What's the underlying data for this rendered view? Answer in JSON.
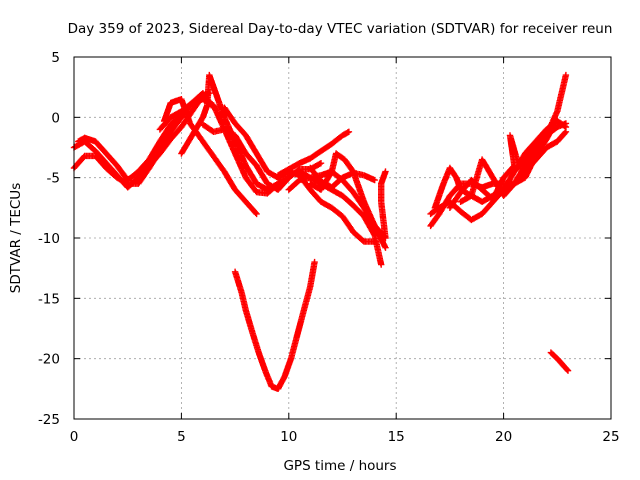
{
  "chart_data": {
    "type": "scatter",
    "title": "Day 359 of 2023, Sidereal Day-to-day VTEC variation (SDTVAR) for receiver reun",
    "xlabel": "GPS time / hours",
    "ylabel": "SDTVAR / TECUs",
    "xlim": [
      0,
      25
    ],
    "ylim": [
      -25,
      5
    ],
    "x_ticks": [
      0,
      5,
      10,
      15,
      20,
      25
    ],
    "y_ticks": [
      5,
      0,
      -5,
      -10,
      -15,
      -20,
      -25
    ],
    "grid": true,
    "legend": "none",
    "marker": "plus",
    "series_color": "#ff0000",
    "series": [
      {
        "name": "",
        "points": [
          [
            0,
            -2.5
          ],
          [
            0.5,
            -2
          ],
          [
            1,
            -2.8
          ],
          [
            1.5,
            -3.8
          ],
          [
            2,
            -4.8
          ],
          [
            2.5,
            -5.8
          ],
          [
            3,
            -5
          ],
          [
            3.5,
            -4
          ],
          [
            4,
            -3
          ],
          [
            4.5,
            -1.8
          ],
          [
            5,
            -0.8
          ],
          [
            5.5,
            0.5
          ],
          [
            6,
            1.8
          ],
          [
            6.3,
            2
          ]
        ]
      },
      {
        "name": "",
        "points": [
          [
            0,
            -4.2
          ],
          [
            0.5,
            -3.2
          ],
          [
            1,
            -3.2
          ],
          [
            1.5,
            -4.2
          ],
          [
            2,
            -5
          ],
          [
            2.5,
            -5.5
          ],
          [
            3,
            -5.5
          ],
          [
            3.5,
            -4.2
          ],
          [
            4,
            -2.8
          ],
          [
            4.5,
            -1.2
          ],
          [
            5,
            0
          ],
          [
            5.5,
            1.2
          ],
          [
            6,
            2
          ],
          [
            6.5,
            0.8
          ]
        ]
      },
      {
        "name": "",
        "points": [
          [
            0.2,
            -2
          ],
          [
            0.5,
            -1.7
          ],
          [
            1,
            -2
          ],
          [
            1.5,
            -3
          ],
          [
            2,
            -4
          ],
          [
            2.5,
            -5.2
          ],
          [
            3,
            -4.5
          ],
          [
            3.5,
            -3.5
          ],
          [
            4,
            -2
          ],
          [
            4.5,
            -0.6
          ],
          [
            5,
            0.2
          ]
        ]
      },
      {
        "name": "",
        "points": [
          [
            5,
            -3
          ],
          [
            5.5,
            -1.5
          ],
          [
            6,
            0
          ],
          [
            6.2,
            1
          ],
          [
            6.3,
            3.5
          ],
          [
            6.6,
            2
          ],
          [
            7,
            0
          ],
          [
            7.5,
            -2
          ],
          [
            8,
            -4
          ],
          [
            8.5,
            -5.5
          ],
          [
            9,
            -6
          ],
          [
            9.5,
            -5.5
          ],
          [
            10,
            -5
          ]
        ]
      },
      {
        "name": "",
        "points": [
          [
            4,
            -1
          ],
          [
            4.5,
            0
          ],
          [
            5,
            0.5
          ],
          [
            5.5,
            1.2
          ],
          [
            6,
            1.5
          ],
          [
            6.5,
            1
          ],
          [
            7,
            -1
          ],
          [
            7.5,
            -3
          ],
          [
            8,
            -5
          ],
          [
            8.5,
            -6.2
          ],
          [
            9,
            -6.3
          ],
          [
            9.5,
            -5.5
          ]
        ]
      },
      {
        "name": "",
        "points": [
          [
            4.2,
            -0.3
          ],
          [
            4.5,
            1.2
          ],
          [
            5,
            1.5
          ],
          [
            5.4,
            -0.5
          ],
          [
            5.8,
            -1.5
          ],
          [
            6.4,
            -3
          ],
          [
            7,
            -4.5
          ],
          [
            7.5,
            -6
          ],
          [
            8,
            -7
          ],
          [
            8.5,
            -8
          ]
        ]
      },
      {
        "name": "",
        "points": [
          [
            6,
            -0.6
          ],
          [
            6.5,
            -1.2
          ],
          [
            7,
            -1
          ],
          [
            7.5,
            -1.5
          ],
          [
            8,
            -3
          ],
          [
            8.5,
            -4
          ],
          [
            9,
            -5.5
          ],
          [
            9.5,
            -6
          ],
          [
            10,
            -5
          ],
          [
            10.5,
            -4.3
          ],
          [
            11,
            -4.3
          ],
          [
            11.5,
            -3.8
          ]
        ]
      },
      {
        "name": "",
        "points": [
          [
            7,
            0.8
          ],
          [
            7.5,
            -0.5
          ],
          [
            8,
            -1.5
          ],
          [
            8.5,
            -3
          ],
          [
            9,
            -4.5
          ],
          [
            9.5,
            -5
          ],
          [
            10,
            -4.5
          ],
          [
            10.5,
            -4.8
          ],
          [
            11,
            -6
          ],
          [
            11.5,
            -7
          ],
          [
            12,
            -7.5
          ],
          [
            12.5,
            -8.2
          ],
          [
            13,
            -9.5
          ],
          [
            13.5,
            -10.3
          ],
          [
            14,
            -10.3
          ]
        ]
      },
      {
        "name": "",
        "points": [
          [
            9.5,
            -4.8
          ],
          [
            10,
            -4.3
          ],
          [
            10.5,
            -3.8
          ],
          [
            11,
            -3.4
          ],
          [
            11.5,
            -2.8
          ],
          [
            12,
            -2.2
          ],
          [
            12.5,
            -1.5
          ],
          [
            12.8,
            -1.2
          ]
        ]
      },
      {
        "name": "",
        "points": [
          [
            10,
            -6
          ],
          [
            10.5,
            -5.2
          ],
          [
            11,
            -5
          ],
          [
            11.5,
            -4.8
          ],
          [
            12,
            -4.5
          ],
          [
            12.5,
            -5.2
          ],
          [
            13,
            -6.2
          ],
          [
            13.5,
            -7.5
          ],
          [
            14,
            -9
          ],
          [
            14.5,
            -10.8
          ]
        ]
      },
      {
        "name": "",
        "points": [
          [
            10.5,
            -4.5
          ],
          [
            11,
            -5
          ],
          [
            11.5,
            -5.5
          ],
          [
            12,
            -6
          ],
          [
            12.5,
            -6.5
          ],
          [
            13,
            -7.3
          ],
          [
            13.5,
            -8.2
          ],
          [
            14,
            -9.8
          ],
          [
            14.3,
            -12.2
          ]
        ]
      },
      {
        "name": "",
        "points": [
          [
            11,
            -4.2
          ],
          [
            11.5,
            -5.3
          ],
          [
            12,
            -5.8
          ],
          [
            12.5,
            -5
          ],
          [
            13,
            -4.6
          ],
          [
            13.5,
            -4.8
          ],
          [
            14,
            -5.2
          ]
        ]
      },
      {
        "name": "",
        "points": [
          [
            11,
            -5.5
          ],
          [
            11.5,
            -6
          ],
          [
            12,
            -4.5
          ],
          [
            12.2,
            -3
          ],
          [
            12.6,
            -3.5
          ],
          [
            13,
            -4.5
          ],
          [
            13.5,
            -7
          ],
          [
            14,
            -9
          ],
          [
            14.5,
            -10
          ],
          [
            14.3,
            -7
          ],
          [
            14.3,
            -5.5
          ],
          [
            14.5,
            -4.5
          ]
        ]
      },
      {
        "name": "",
        "points": [
          [
            7.5,
            -12.8
          ],
          [
            7.8,
            -14.5
          ],
          [
            8,
            -16
          ],
          [
            8.3,
            -17.8
          ],
          [
            8.6,
            -19.5
          ],
          [
            8.9,
            -21
          ],
          [
            9.2,
            -22.3
          ],
          [
            9.5,
            -22.5
          ],
          [
            9.8,
            -21.5
          ],
          [
            10.1,
            -20
          ],
          [
            10.4,
            -18
          ],
          [
            10.7,
            -16
          ],
          [
            11,
            -14
          ],
          [
            11.2,
            -12
          ]
        ]
      },
      {
        "name": "",
        "points": [
          [
            16.6,
            -9
          ],
          [
            17,
            -8
          ],
          [
            17.5,
            -6.5
          ],
          [
            18,
            -5.5
          ],
          [
            18.5,
            -5.5
          ],
          [
            19,
            -5.8
          ],
          [
            19.5,
            -5.5
          ],
          [
            20,
            -5.5
          ],
          [
            20.5,
            -5.5
          ],
          [
            21,
            -4.5
          ],
          [
            21.5,
            -3.5
          ],
          [
            22,
            -2.5
          ],
          [
            22.5,
            -2
          ],
          [
            22.9,
            -1.2
          ]
        ]
      },
      {
        "name": "",
        "points": [
          [
            16.6,
            -8
          ],
          [
            17,
            -7.5
          ],
          [
            17.5,
            -7
          ],
          [
            18,
            -7.8
          ],
          [
            18.5,
            -8.5
          ],
          [
            19,
            -8
          ],
          [
            19.5,
            -7
          ],
          [
            20,
            -6
          ],
          [
            20.5,
            -5.5
          ],
          [
            21,
            -4
          ],
          [
            21.5,
            -2.5
          ],
          [
            22,
            -1.5
          ],
          [
            22.5,
            -0.8
          ],
          [
            22.9,
            -0.5
          ]
        ]
      },
      {
        "name": "",
        "points": [
          [
            16.8,
            -7.5
          ],
          [
            17.2,
            -5.5
          ],
          [
            17.5,
            -4.2
          ],
          [
            17.8,
            -5
          ],
          [
            18,
            -6
          ],
          [
            18.5,
            -6.5
          ],
          [
            19,
            -7
          ],
          [
            19.5,
            -6.5
          ],
          [
            20,
            -6
          ],
          [
            20.5,
            -4.5
          ],
          [
            21,
            -3.5
          ],
          [
            21.5,
            -2.5
          ],
          [
            22,
            -1.5
          ],
          [
            22.5,
            0.5
          ],
          [
            22.9,
            3.5
          ]
        ]
      },
      {
        "name": "",
        "points": [
          [
            17.5,
            -7.5
          ],
          [
            18,
            -6.2
          ],
          [
            18.5,
            -5.2
          ],
          [
            19,
            -6
          ],
          [
            19.5,
            -6.8
          ],
          [
            20,
            -5
          ],
          [
            20.5,
            -4
          ],
          [
            20.3,
            -1.5
          ],
          [
            20.7,
            -4
          ],
          [
            21,
            -3
          ],
          [
            21.5,
            -2
          ],
          [
            22,
            -1
          ],
          [
            22.5,
            -0.3
          ],
          [
            22.9,
            -0.8
          ]
        ]
      },
      {
        "name": "",
        "points": [
          [
            18,
            -7
          ],
          [
            18.5,
            -6.5
          ],
          [
            19,
            -3.5
          ],
          [
            19.5,
            -5
          ],
          [
            20,
            -6.5
          ],
          [
            20.5,
            -5.5
          ],
          [
            21,
            -5
          ],
          [
            21.5,
            -3.2
          ],
          [
            22,
            -1.8
          ],
          [
            22.3,
            -0.8
          ]
        ]
      },
      {
        "name": "",
        "points": [
          [
            22.2,
            -19.5
          ],
          [
            22.5,
            -20
          ],
          [
            22.8,
            -20.6
          ],
          [
            23,
            -21
          ]
        ]
      }
    ]
  }
}
